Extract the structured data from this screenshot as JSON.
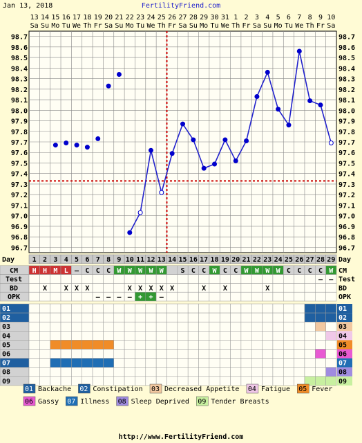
{
  "header": {
    "date": "Jan 13, 2018",
    "site": "FertilityFriend.com"
  },
  "footer": {
    "url": "http://www.FertilityFriend.com"
  },
  "colors": {
    "background": "#FFFBD5",
    "grid": "#888888",
    "line": "#2222CC",
    "coverline": "#CC0000",
    "cycle_day_bg": "#C8C8C8",
    "cm_header_bg": "#D2D2D2",
    "cm_red": "#CC3333",
    "cm_green": "#339933",
    "opk_positive": "#339933",
    "symptom_label_bg": "#D2D2D2",
    "symptom_label_blue": "#1F5FA0"
  },
  "chart_data": {
    "type": "line",
    "title": "",
    "xlabel": "",
    "ylabel": "",
    "ylim": [
      96.7,
      98.8
    ],
    "yticks": [
      "98.7",
      "98.6",
      "98.5",
      "98.4",
      "98.3",
      "98.2",
      "98.1",
      "98.0",
      "97.9",
      "97.8",
      "97.7",
      "97.6",
      "97.5",
      "97.4",
      "97.3",
      "97.2",
      "97.1",
      "97.0",
      "96.9",
      "96.8",
      "96.7"
    ],
    "dates": [
      "13",
      "14",
      "15",
      "16",
      "17",
      "18",
      "19",
      "20",
      "21",
      "22",
      "23",
      "24",
      "25",
      "26",
      "27",
      "28",
      "29",
      "30",
      "31",
      "1",
      "2",
      "3",
      "4",
      "5",
      "6",
      "7",
      "8",
      "9",
      "10"
    ],
    "weekdays": [
      "Sa",
      "Su",
      "Mo",
      "Tu",
      "We",
      "Th",
      "Fr",
      "Sa",
      "Su",
      "Mo",
      "Tu",
      "We",
      "Th",
      "Fr",
      "Sa",
      "Su",
      "Mo",
      "Tu",
      "We",
      "Th",
      "Fr",
      "Sa",
      "Su",
      "Mo",
      "Tu",
      "We",
      "Th",
      "Fr",
      "Sa"
    ],
    "cycle_days": [
      "1",
      "2",
      "3",
      "4",
      "5",
      "6",
      "7",
      "8",
      "9",
      "10",
      "11",
      "12",
      "13",
      "14",
      "15",
      "16",
      "17",
      "18",
      "19",
      "20",
      "21",
      "22",
      "23",
      "24",
      "25",
      "26",
      "27",
      "28",
      "29"
    ],
    "temps": [
      null,
      null,
      97.72,
      97.74,
      97.72,
      97.7,
      97.78,
      98.28,
      98.39,
      96.89,
      97.08,
      97.67,
      97.27,
      97.64,
      97.92,
      97.77,
      97.5,
      97.54,
      97.77,
      97.57,
      97.76,
      98.18,
      98.41,
      98.06,
      97.91,
      98.61,
      98.14,
      98.1,
      97.74
    ],
    "open_markers": [
      10,
      12,
      28
    ],
    "connected_from_index": 9,
    "coverline": 97.38,
    "ovulation_cycle_day": 13,
    "rows": {
      "cm_label": "CM",
      "cm": [
        "H",
        "H",
        "M",
        "L",
        "–",
        "C",
        "C",
        "C",
        "W",
        "W",
        "W",
        "W",
        "W",
        "",
        "S",
        "C",
        "C",
        "W",
        "C",
        "C",
        "W",
        "W",
        "W",
        "W",
        "C",
        "C",
        "C",
        "C",
        "W"
      ],
      "cm_colors": [
        "red",
        "red",
        "red",
        "red",
        "",
        "",
        "",
        "",
        "green",
        "green",
        "green",
        "green",
        "green",
        "",
        "",
        "",
        "",
        "green",
        "",
        "",
        "green",
        "green",
        "green",
        "green",
        "",
        "",
        "",
        "",
        "green"
      ],
      "test_label": "Test",
      "test": [
        "",
        "",
        "",
        "",
        "",
        "",
        "",
        "",
        "",
        "",
        "",
        "",
        "",
        "",
        "",
        "",
        "",
        "",
        "",
        "",
        "",
        "",
        "",
        "",
        "",
        "",
        "",
        "–",
        "–"
      ],
      "bd_label": "BD",
      "bd": [
        "",
        "X",
        "",
        "X",
        "X",
        "X",
        "",
        "",
        "",
        "X",
        "X",
        "X",
        "X",
        "X",
        "",
        "",
        "X",
        "",
        "X",
        "",
        "",
        "",
        "X",
        "",
        "",
        "",
        "",
        "",
        ""
      ],
      "opk_label": "OPK",
      "opk": [
        "",
        "",
        "",
        "",
        "",
        "",
        "–",
        "–",
        "–",
        "–",
        "+",
        "+",
        "–",
        "",
        "",
        "",
        "",
        "",
        "",
        "",
        "",
        "",
        "",
        "",
        "",
        "",
        "",
        "",
        ""
      ],
      "opk_positive": [
        false,
        false,
        false,
        false,
        false,
        false,
        false,
        false,
        false,
        false,
        true,
        true,
        false,
        false,
        false,
        false,
        false,
        false,
        false,
        false,
        false,
        false,
        false,
        false,
        false,
        false,
        false,
        false,
        false
      ]
    },
    "symptoms": [
      {
        "code": "01",
        "name": "Backache",
        "color": "#1F5FA0",
        "days": [
          27,
          28,
          29
        ]
      },
      {
        "code": "02",
        "name": "Constipation",
        "color": "#1F5FA0",
        "days": [
          27,
          28,
          29
        ]
      },
      {
        "code": "03",
        "name": "Decreased Appetite",
        "color": "#F2C8A0",
        "days": [
          28
        ]
      },
      {
        "code": "04",
        "name": "Fatigue",
        "color": "#F0C8E8",
        "days": [
          29
        ]
      },
      {
        "code": "05",
        "name": "Fever",
        "color": "#F08C28",
        "days": [
          3,
          4,
          5,
          6,
          7,
          8
        ]
      },
      {
        "code": "06",
        "name": "Gassy",
        "color": "#E85AD2",
        "days": [
          28
        ]
      },
      {
        "code": "07",
        "name": "Illness",
        "color": "#1F6EB4",
        "days": [
          3,
          4,
          5,
          6,
          7,
          8
        ]
      },
      {
        "code": "08",
        "name": "Sleep Deprived",
        "color": "#A08CE0",
        "days": [
          29
        ]
      },
      {
        "code": "09",
        "name": "Tender Breasts",
        "color": "#C8F0A0",
        "days": [
          27,
          28,
          29
        ]
      }
    ]
  }
}
